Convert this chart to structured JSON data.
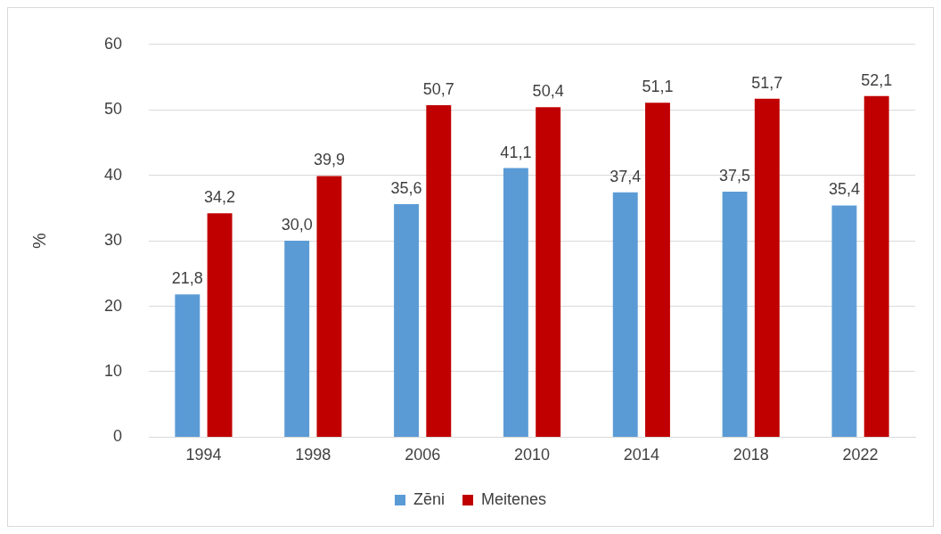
{
  "chart_data": {
    "type": "bar",
    "ylabel": "%",
    "categories": [
      "1994",
      "1998",
      "2006",
      "2010",
      "2014",
      "2018",
      "2022"
    ],
    "series": [
      {
        "name": "Zēni",
        "color": "#5b9bd5",
        "values": [
          21.8,
          30.0,
          35.6,
          41.1,
          37.4,
          37.5,
          35.4
        ],
        "value_labels": [
          "21,8",
          "30,0",
          "35,6",
          "41,1",
          "37,4",
          "37,5",
          "35,4"
        ]
      },
      {
        "name": "Meitenes",
        "color": "#c00000",
        "values": [
          34.2,
          39.9,
          50.7,
          50.4,
          51.1,
          51.7,
          52.1
        ],
        "value_labels": [
          "34,2",
          "39,9",
          "50,7",
          "50,4",
          "51,1",
          "51,7",
          "52,1"
        ]
      }
    ],
    "ylim": [
      0,
      60
    ],
    "yticks": [
      0,
      10,
      20,
      30,
      40,
      50,
      60
    ],
    "grid": "y",
    "legend": "bottom"
  }
}
